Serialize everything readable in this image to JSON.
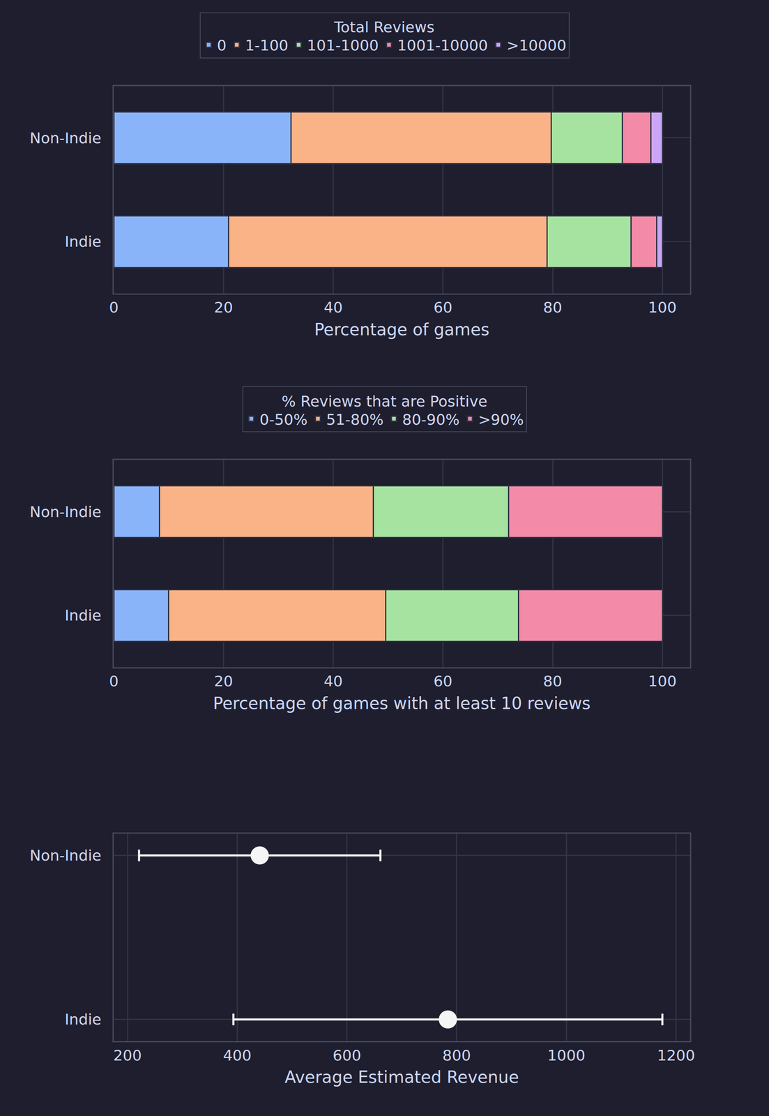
{
  "chart_data": [
    {
      "type": "bar",
      "orientation": "horizontal",
      "stacked": true,
      "legend_title": "Total Reviews",
      "legend": "top",
      "xlabel": "Percentage of games",
      "categories": [
        "Non-Indie",
        "Indie"
      ],
      "series": [
        {
          "name": "0",
          "color": "#89b4fa",
          "values": [
            32.3,
            20.9
          ]
        },
        {
          "name": "1-100",
          "color": "#fab387",
          "values": [
            47.4,
            58.1
          ]
        },
        {
          "name": "101-1000",
          "color": "#a6e3a1",
          "values": [
            13.0,
            15.3
          ]
        },
        {
          "name": "1001-10000",
          "color": "#f38ba8",
          "values": [
            5.2,
            4.7
          ]
        },
        {
          "name": ">10000",
          "color": "#cba6f7",
          "values": [
            2.1,
            1.0
          ]
        }
      ],
      "xlim": [
        0,
        105
      ],
      "xticks": [
        0,
        20,
        40,
        60,
        80,
        100
      ],
      "grid": true
    },
    {
      "type": "bar",
      "orientation": "horizontal",
      "stacked": true,
      "legend_title": "% Reviews that are Positive",
      "legend": "top",
      "xlabel": "Percentage of games with at least 10 reviews",
      "categories": [
        "Non-Indie",
        "Indie"
      ],
      "series": [
        {
          "name": "0-50%",
          "color": "#89b4fa",
          "values": [
            8.3,
            10.0
          ]
        },
        {
          "name": "51-80%",
          "color": "#fab387",
          "values": [
            39.0,
            39.6
          ]
        },
        {
          "name": "80-90%",
          "color": "#a6e3a1",
          "values": [
            24.7,
            24.2
          ]
        },
        {
          "name": ">90%",
          "color": "#f38ba8",
          "values": [
            28.0,
            26.2
          ]
        }
      ],
      "xlim": [
        0,
        105
      ],
      "xticks": [
        0,
        20,
        40,
        60,
        80,
        100
      ],
      "grid": true
    },
    {
      "type": "scatter",
      "orientation": "horizontal",
      "marker": "circle",
      "xlabel": "Average Estimated Revenue",
      "categories": [
        "Non-Indie",
        "Indie"
      ],
      "values": [
        441,
        784
      ],
      "error": [
        220,
        391
      ],
      "color": "#f5f5f5",
      "xlim": [
        175,
        1225
      ],
      "xticks": [
        200,
        400,
        600,
        800,
        1000,
        1200
      ],
      "grid": true
    }
  ]
}
